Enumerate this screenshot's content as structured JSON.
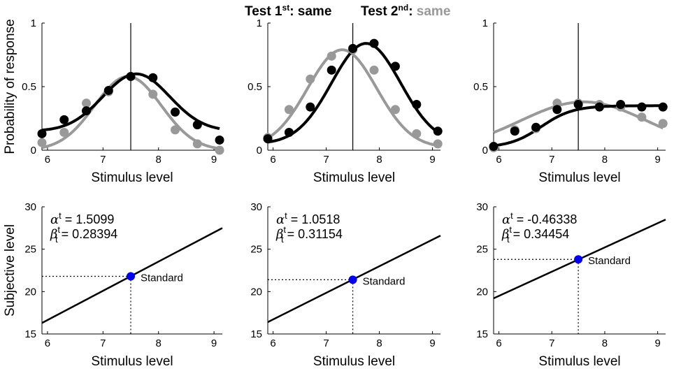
{
  "figure_title": {
    "left": {
      "prefix": "Test 1",
      "sup": "st",
      "suffix": ": same"
    },
    "right": {
      "prefix": "Test 2",
      "sup": "nd",
      "suffix": ": ",
      "value": "same"
    }
  },
  "colors": {
    "series1": "#000000",
    "series2": "#999999",
    "standard_point": "#0000ee",
    "background": "#ffffff"
  },
  "chart_data": [
    {
      "type": "scatter+line",
      "panel": "top-left",
      "xlabel": "Stimulus level",
      "ylabel": "Probability of response",
      "xlim": [
        5.9,
        9.15
      ],
      "ylim": [
        0,
        1
      ],
      "xticks": [
        6,
        7,
        8,
        9
      ],
      "xtick_labels": [
        "6",
        "7",
        "8",
        "9"
      ],
      "yticks": [
        0,
        0.5,
        1
      ],
      "ytick_labels": [
        "0",
        "0.5",
        "1"
      ],
      "vline": 7.5,
      "x": [
        5.9,
        6.3,
        6.7,
        7.1,
        7.5,
        7.9,
        8.3,
        8.7,
        9.1
      ],
      "series": [
        {
          "name": "Test 1st",
          "color": "#000000",
          "points": [
            0.13,
            0.24,
            0.31,
            0.47,
            0.58,
            0.57,
            0.3,
            0.2,
            0.08
          ],
          "curve": {
            "kind": "gauss",
            "base": 0.15,
            "amp": 0.45,
            "mu": 7.6,
            "sigma": 0.6
          }
        },
        {
          "name": "Test 2nd",
          "color": "#999999",
          "points": [
            0.06,
            0.14,
            0.37,
            0.46,
            0.58,
            0.44,
            0.16,
            0.05,
            0.0
          ],
          "curve": {
            "kind": "gauss",
            "base": 0.0,
            "amp": 0.58,
            "mu": 7.45,
            "sigma": 0.6
          }
        }
      ]
    },
    {
      "type": "scatter+line",
      "panel": "top-middle",
      "xlabel": "Stimulus level",
      "ylabel": "",
      "xlim": [
        5.9,
        9.15
      ],
      "ylim": [
        0,
        1
      ],
      "xticks": [
        6,
        7,
        8,
        9
      ],
      "xtick_labels": [
        "6",
        "7",
        "8",
        "9"
      ],
      "yticks": [
        0,
        0.5,
        1
      ],
      "ytick_labels": [
        "0",
        "0.5",
        "1"
      ],
      "vline": 7.5,
      "x": [
        5.9,
        6.3,
        6.7,
        7.1,
        7.5,
        7.9,
        8.3,
        8.7,
        9.1
      ],
      "series": [
        {
          "name": "Test 1st",
          "color": "#000000",
          "points": [
            0.09,
            0.14,
            0.34,
            0.63,
            0.8,
            0.84,
            0.66,
            0.36,
            0.15
          ],
          "curve": {
            "kind": "gauss",
            "base": 0.05,
            "amp": 0.79,
            "mu": 7.75,
            "sigma": 0.65
          }
        },
        {
          "name": "Test 2nd",
          "color": "#999999",
          "points": [
            0.1,
            0.32,
            0.56,
            0.74,
            0.79,
            0.63,
            0.32,
            0.13,
            0.05
          ],
          "curve": {
            "kind": "gauss",
            "base": 0.02,
            "amp": 0.77,
            "mu": 7.3,
            "sigma": 0.65
          }
        }
      ]
    },
    {
      "type": "scatter+line",
      "panel": "top-right",
      "xlabel": "Stimulus level",
      "ylabel": "",
      "xlim": [
        5.9,
        9.15
      ],
      "ylim": [
        0,
        1
      ],
      "xticks": [
        6,
        7,
        8,
        9
      ],
      "xtick_labels": [
        "6",
        "7",
        "8",
        "9"
      ],
      "yticks": [
        0,
        0.5,
        1
      ],
      "ytick_labels": [
        "0",
        "0.5",
        "1"
      ],
      "vline": 7.5,
      "x": [
        5.9,
        6.3,
        6.7,
        7.1,
        7.5,
        7.9,
        8.3,
        8.7,
        9.1
      ],
      "series": [
        {
          "name": "Test 1st",
          "color": "#000000",
          "points": [
            0.03,
            0.15,
            0.18,
            0.32,
            0.36,
            0.34,
            0.36,
            0.34,
            0.34
          ],
          "curve": {
            "kind": "logistic",
            "base": 0.02,
            "amp": 0.33,
            "mu": 6.8,
            "sigma": 0.3
          }
        },
        {
          "name": "Test 2nd",
          "color": "#999999",
          "points": [
            0.02,
            0.16,
            0.17,
            0.37,
            0.37,
            0.36,
            0.34,
            0.26,
            0.21
          ],
          "curve": {
            "kind": "gauss",
            "base": 0.0,
            "amp": 0.38,
            "mu": 7.6,
            "sigma": 1.2
          }
        }
      ]
    },
    {
      "type": "line",
      "panel": "bottom-left",
      "xlabel": "Stimulus level",
      "ylabel": "Subjective level",
      "xlim": [
        5.9,
        9.15
      ],
      "ylim": [
        15,
        30
      ],
      "xticks": [
        6,
        7,
        8,
        9
      ],
      "xtick_labels": [
        "6",
        "7",
        "8",
        "9"
      ],
      "yticks": [
        15,
        20,
        25,
        30
      ],
      "ytick_labels": [
        "15",
        "20",
        "25",
        "30"
      ],
      "line": {
        "x0": 5.9,
        "y0": 16.3,
        "x1": 9.15,
        "y1": 27.5
      },
      "standard": {
        "x": 7.5,
        "y": 21.8,
        "label": "Standard"
      },
      "alpha": {
        "label": "α",
        "sub": "t",
        "value": " = 1.5099"
      },
      "beta": {
        "label": "β",
        "sup": "t",
        "sub": "t",
        "value": " = 0.28394"
      }
    },
    {
      "type": "line",
      "panel": "bottom-middle",
      "xlabel": "Stimulus level",
      "ylabel": "",
      "xlim": [
        5.9,
        9.15
      ],
      "ylim": [
        15,
        30
      ],
      "xticks": [
        6,
        7,
        8,
        9
      ],
      "xtick_labels": [
        "6",
        "7",
        "8",
        "9"
      ],
      "yticks": [
        15,
        20,
        25,
        30
      ],
      "ytick_labels": [
        "15",
        "20",
        "25",
        "30"
      ],
      "line": {
        "x0": 5.9,
        "y0": 16.4,
        "x1": 9.15,
        "y1": 26.6
      },
      "standard": {
        "x": 7.5,
        "y": 21.4,
        "label": "Standard"
      },
      "alpha": {
        "label": "α",
        "sub": "t",
        "value": " = 1.0518"
      },
      "beta": {
        "label": "β",
        "sup": "t",
        "sub": "t",
        "value": " = 0.31154"
      }
    },
    {
      "type": "line",
      "panel": "bottom-right",
      "xlabel": "Stimulus level",
      "ylabel": "",
      "xlim": [
        5.9,
        9.15
      ],
      "ylim": [
        15,
        30
      ],
      "xticks": [
        6,
        7,
        8,
        9
      ],
      "xtick_labels": [
        "6",
        "7",
        "8",
        "9"
      ],
      "yticks": [
        15,
        20,
        25,
        30
      ],
      "ytick_labels": [
        "15",
        "20",
        "25",
        "30"
      ],
      "line": {
        "x0": 5.9,
        "y0": 19.2,
        "x1": 9.15,
        "y1": 28.5
      },
      "standard": {
        "x": 7.5,
        "y": 23.8,
        "label": "Standard"
      },
      "alpha": {
        "label": "α",
        "sub": "t",
        "value": " = -0.46338"
      },
      "beta": {
        "label": "β",
        "sup": "t",
        "sub": "t",
        "value": " = 0.34454"
      }
    }
  ]
}
